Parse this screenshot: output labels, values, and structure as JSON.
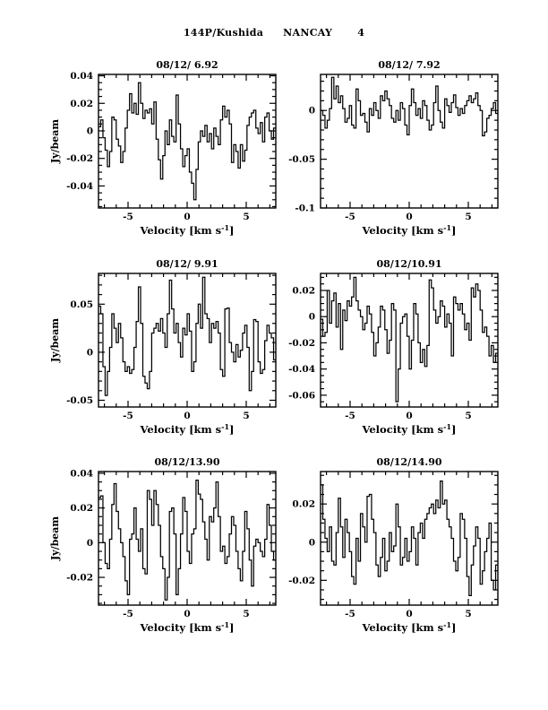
{
  "page": {
    "header": {
      "object": "144P/Kushida",
      "telescope": "NANCAY",
      "page_number": "4"
    }
  },
  "colors": {
    "ink": "#000000",
    "paper": "#ffffff"
  },
  "axis": {
    "xlabel_prefix": "Velocity [km s",
    "xlabel_sup": "-1",
    "xlabel_suffix": "]",
    "ylabel": "Jy/beam"
  },
  "chart_data": [
    {
      "type": "line",
      "line_style": "histogram-step",
      "title": "08/12/ 6.92",
      "ylabel": "Jy/beam",
      "xlabel": "Velocity [km s^-1]",
      "xlim": [
        -7.5,
        7.5
      ],
      "ylim": [
        -0.056,
        0.041
      ],
      "xticks": [
        {
          "v": -5,
          "label": "-5"
        },
        {
          "v": 0,
          "label": "0"
        },
        {
          "v": 5,
          "label": "5"
        }
      ],
      "xminor_step": 1,
      "yticks": [
        {
          "v": 0.04,
          "label": "0.04"
        },
        {
          "v": 0.02,
          "label": "0.02"
        },
        {
          "v": 0,
          "label": "0"
        },
        {
          "v": -0.02,
          "label": "-0.02"
        },
        {
          "v": -0.04,
          "label": "-0.04"
        }
      ],
      "yminor_step": 0.005,
      "x_start": -7.5,
      "x_step": 0.1875,
      "values": [
        0.003,
        0.008,
        -0.005,
        -0.014,
        -0.026,
        -0.015,
        0.01,
        0.008,
        -0.006,
        -0.011,
        -0.023,
        -0.015,
        0.002,
        0.015,
        0.027,
        0.013,
        0.02,
        0.012,
        0.035,
        0.02,
        0.009,
        0.015,
        0.013,
        0.016,
        0.005,
        0.021,
        -0.006,
        -0.021,
        -0.035,
        -0.018,
        0.0,
        -0.01,
        0.008,
        -0.004,
        -0.008,
        0.026,
        0.005,
        -0.013,
        -0.026,
        -0.018,
        -0.013,
        -0.03,
        -0.038,
        -0.05,
        -0.028,
        -0.008,
        0.0,
        -0.004,
        0.004,
        -0.008,
        -0.002,
        -0.013,
        0.002,
        -0.004,
        -0.01,
        0.008,
        0.018,
        0.01,
        0.015,
        0.005,
        -0.023,
        -0.01,
        -0.015,
        -0.027,
        -0.01,
        -0.022,
        -0.014,
        0.004,
        0.01,
        0.013,
        0.015,
        0.002,
        -0.002,
        0.006,
        -0.008,
        0.01,
        0.013,
        0.0,
        -0.006,
        0.002
      ]
    },
    {
      "type": "line",
      "line_style": "histogram-step",
      "title": "08/12/ 7.92",
      "ylabel": "",
      "xlabel": "Velocity [km s^-1]",
      "xlim": [
        -7.5,
        7.5
      ],
      "ylim": [
        -0.1,
        0.037
      ],
      "xticks": [
        {
          "v": -5,
          "label": "-5"
        },
        {
          "v": 0,
          "label": "0"
        },
        {
          "v": 5,
          "label": "5"
        }
      ],
      "xminor_step": 1,
      "yticks": [
        {
          "v": 0,
          "label": "0"
        },
        {
          "v": -0.05,
          "label": "-0.05"
        },
        {
          "v": -0.1,
          "label": "-0.1"
        }
      ],
      "yminor_step": 0.01,
      "x_start": -7.5,
      "x_step": 0.1875,
      "values": [
        0.0,
        -0.005,
        -0.018,
        -0.01,
        0.002,
        0.034,
        0.012,
        0.025,
        0.008,
        0.015,
        0.002,
        -0.012,
        -0.008,
        0.005,
        -0.015,
        -0.018,
        0.022,
        0.01,
        -0.005,
        -0.003,
        -0.012,
        -0.022,
        0.002,
        -0.005,
        0.008,
        0.0,
        -0.008,
        0.015,
        0.01,
        0.02,
        0.012,
        0.005,
        -0.008,
        -0.012,
        0.0,
        -0.01,
        0.008,
        0.002,
        -0.015,
        -0.025,
        0.005,
        0.022,
        0.008,
        -0.005,
        0.002,
        -0.008,
        0.01,
        0.005,
        -0.01,
        -0.02,
        -0.015,
        0.008,
        0.025,
        0.0,
        -0.012,
        -0.018,
        0.012,
        0.005,
        -0.002,
        0.008,
        0.016,
        0.003,
        -0.005,
        0.002,
        -0.003,
        0.005,
        0.01,
        0.015,
        0.008,
        0.012,
        0.018,
        0.005,
        0.0,
        -0.026,
        -0.022,
        -0.008,
        -0.005,
        0.002,
        0.008,
        -0.003
      ]
    },
    {
      "type": "line",
      "line_style": "histogram-step",
      "title": "08/12/ 9.91",
      "ylabel": "Jy/beam",
      "xlabel": "Velocity [km s^-1]",
      "xlim": [
        -7.5,
        7.5
      ],
      "ylim": [
        -0.057,
        0.082
      ],
      "xticks": [
        {
          "v": -5,
          "label": "-5"
        },
        {
          "v": 0,
          "label": "0"
        },
        {
          "v": 5,
          "label": "5"
        }
      ],
      "xminor_step": 1,
      "yticks": [
        {
          "v": 0.05,
          "label": "0.05"
        },
        {
          "v": 0,
          "label": "0"
        },
        {
          "v": -0.05,
          "label": "-0.05"
        }
      ],
      "yminor_step": 0.01,
      "x_start": -7.5,
      "x_step": 0.1875,
      "values": [
        0.048,
        0.04,
        -0.015,
        -0.045,
        -0.02,
        0.005,
        0.04,
        0.025,
        0.01,
        0.03,
        0.015,
        -0.01,
        -0.02,
        -0.015,
        -0.022,
        -0.018,
        0.005,
        0.032,
        0.068,
        0.03,
        -0.025,
        -0.032,
        -0.038,
        -0.02,
        0.02,
        0.025,
        0.03,
        0.022,
        0.035,
        0.02,
        0.005,
        0.04,
        0.075,
        0.045,
        0.02,
        0.03,
        0.01,
        -0.005,
        0.025,
        0.018,
        0.04,
        0.022,
        -0.02,
        -0.01,
        0.03,
        0.05,
        0.025,
        0.078,
        0.04,
        0.035,
        0.01,
        0.03,
        0.025,
        0.032,
        0.02,
        -0.018,
        -0.025,
        0.045,
        0.046,
        0.01,
        0.0,
        -0.01,
        0.008,
        -0.005,
        0.002,
        0.02,
        0.028,
        0.005,
        -0.04,
        -0.02,
        0.034,
        0.032,
        -0.01,
        -0.022,
        -0.018,
        0.012,
        0.028,
        0.02,
        0.015,
        -0.008
      ]
    },
    {
      "type": "line",
      "line_style": "histogram-step",
      "title": "08/12/10.91",
      "ylabel": "",
      "xlabel": "Velocity [km s^-1]",
      "xlim": [
        -7.5,
        7.5
      ],
      "ylim": [
        -0.069,
        0.033
      ],
      "xticks": [
        {
          "v": -5,
          "label": "-5"
        },
        {
          "v": 0,
          "label": "0"
        },
        {
          "v": 5,
          "label": "5"
        }
      ],
      "xminor_step": 1,
      "yticks": [
        {
          "v": 0.02,
          "label": "0.02"
        },
        {
          "v": 0,
          "label": "0"
        },
        {
          "v": -0.02,
          "label": "-0.02"
        },
        {
          "v": -0.04,
          "label": "-0.04"
        },
        {
          "v": -0.06,
          "label": "-0.06"
        }
      ],
      "yminor_step": 0.005,
      "x_start": -7.5,
      "x_step": 0.1875,
      "values": [
        -0.002,
        -0.015,
        -0.012,
        0.02,
        -0.005,
        0.012,
        0.018,
        -0.008,
        0.01,
        -0.025,
        0.005,
        -0.003,
        0.012,
        0.008,
        0.015,
        0.03,
        0.012,
        0.005,
        0.0,
        -0.01,
        -0.005,
        0.008,
        0.002,
        -0.012,
        -0.03,
        -0.02,
        -0.008,
        0.008,
        0.005,
        -0.01,
        -0.028,
        -0.018,
        0.01,
        0.005,
        -0.065,
        -0.04,
        -0.005,
        0.0,
        0.002,
        -0.015,
        -0.04,
        -0.018,
        0.01,
        0.002,
        -0.02,
        -0.035,
        -0.025,
        -0.038,
        -0.022,
        0.028,
        0.022,
        0.005,
        -0.005,
        0.0,
        0.012,
        0.008,
        -0.008,
        0.002,
        -0.005,
        -0.03,
        0.015,
        0.01,
        0.005,
        0.01,
        0.002,
        -0.01,
        -0.005,
        -0.018,
        0.022,
        0.015,
        0.025,
        0.02,
        0.005,
        -0.012,
        -0.008,
        -0.015,
        -0.03,
        -0.022,
        -0.035,
        -0.028
      ]
    },
    {
      "type": "line",
      "line_style": "histogram-step",
      "title": "08/12/13.90",
      "ylabel": "Jy/beam",
      "xlabel": "Velocity [km s^-1]",
      "xlim": [
        -7.5,
        7.5
      ],
      "ylim": [
        -0.036,
        0.041
      ],
      "xticks": [
        {
          "v": -5,
          "label": "-5"
        },
        {
          "v": 0,
          "label": "0"
        },
        {
          "v": 5,
          "label": "5"
        }
      ],
      "xminor_step": 1,
      "yticks": [
        {
          "v": 0.04,
          "label": "0.04"
        },
        {
          "v": 0.02,
          "label": "0.02"
        },
        {
          "v": 0,
          "label": "0"
        },
        {
          "v": -0.02,
          "label": "-0.02"
        }
      ],
      "yminor_step": 0.005,
      "x_start": -7.5,
      "x_step": 0.1875,
      "values": [
        0.026,
        0.027,
        0.0,
        -0.012,
        -0.015,
        0.002,
        0.022,
        0.034,
        0.018,
        0.008,
        0.0,
        -0.008,
        -0.022,
        -0.03,
        0.002,
        0.005,
        0.02,
        0.002,
        -0.005,
        0.008,
        -0.015,
        -0.018,
        0.03,
        0.025,
        0.01,
        0.03,
        0.022,
        0.01,
        -0.008,
        -0.015,
        -0.033,
        -0.02,
        0.018,
        0.02,
        0.005,
        -0.03,
        -0.015,
        0.005,
        0.026,
        0.018,
        -0.005,
        -0.012,
        0.005,
        0.008,
        0.036,
        0.028,
        0.025,
        0.012,
        0.002,
        -0.01,
        0.015,
        0.012,
        0.02,
        0.035,
        0.015,
        -0.005,
        -0.002,
        -0.012,
        -0.008,
        0.005,
        0.015,
        0.01,
        -0.005,
        -0.015,
        -0.022,
        -0.005,
        0.018,
        0.008,
        -0.01,
        -0.025,
        -0.002,
        0.002,
        0.0,
        -0.005,
        -0.008,
        0.002,
        0.022,
        0.01,
        -0.005,
        -0.01
      ]
    },
    {
      "type": "line",
      "line_style": "histogram-step",
      "title": "08/12/14.90",
      "ylabel": "",
      "xlabel": "Velocity [km s^-1]",
      "xlim": [
        -7.5,
        7.5
      ],
      "ylim": [
        -0.033,
        0.037
      ],
      "xticks": [
        {
          "v": -5,
          "label": "-5"
        },
        {
          "v": 0,
          "label": "0"
        },
        {
          "v": 5,
          "label": "5"
        }
      ],
      "xminor_step": 1,
      "yticks": [
        {
          "v": 0.02,
          "label": "0.02"
        },
        {
          "v": 0,
          "label": "0"
        },
        {
          "v": -0.02,
          "label": "-0.02"
        }
      ],
      "yminor_step": 0.005,
      "x_start": -7.5,
      "x_step": 0.1875,
      "values": [
        0.03,
        0.012,
        0.002,
        -0.005,
        0.008,
        -0.01,
        -0.012,
        0.005,
        0.023,
        0.008,
        -0.008,
        0.012,
        0.005,
        -0.005,
        -0.018,
        -0.022,
        0.002,
        -0.01,
        0.015,
        0.008,
        0.0,
        0.024,
        0.025,
        0.012,
        0.005,
        -0.012,
        -0.018,
        -0.008,
        0.002,
        -0.015,
        -0.01,
        0.005,
        -0.005,
        -0.002,
        0.02,
        0.008,
        -0.012,
        -0.008,
        0.002,
        -0.01,
        -0.005,
        0.008,
        0.002,
        -0.012,
        0.005,
        0.01,
        0.002,
        0.012,
        0.015,
        0.018,
        0.02,
        0.015,
        0.022,
        0.018,
        0.032,
        0.02,
        0.022,
        0.012,
        0.008,
        0.002,
        -0.01,
        -0.015,
        -0.008,
        0.015,
        0.012,
        0.002,
        -0.018,
        -0.028,
        -0.012,
        -0.002,
        0.008,
        0.002,
        -0.022,
        -0.015,
        -0.005,
        0.002,
        0.01,
        -0.02,
        -0.025,
        -0.012
      ]
    }
  ]
}
